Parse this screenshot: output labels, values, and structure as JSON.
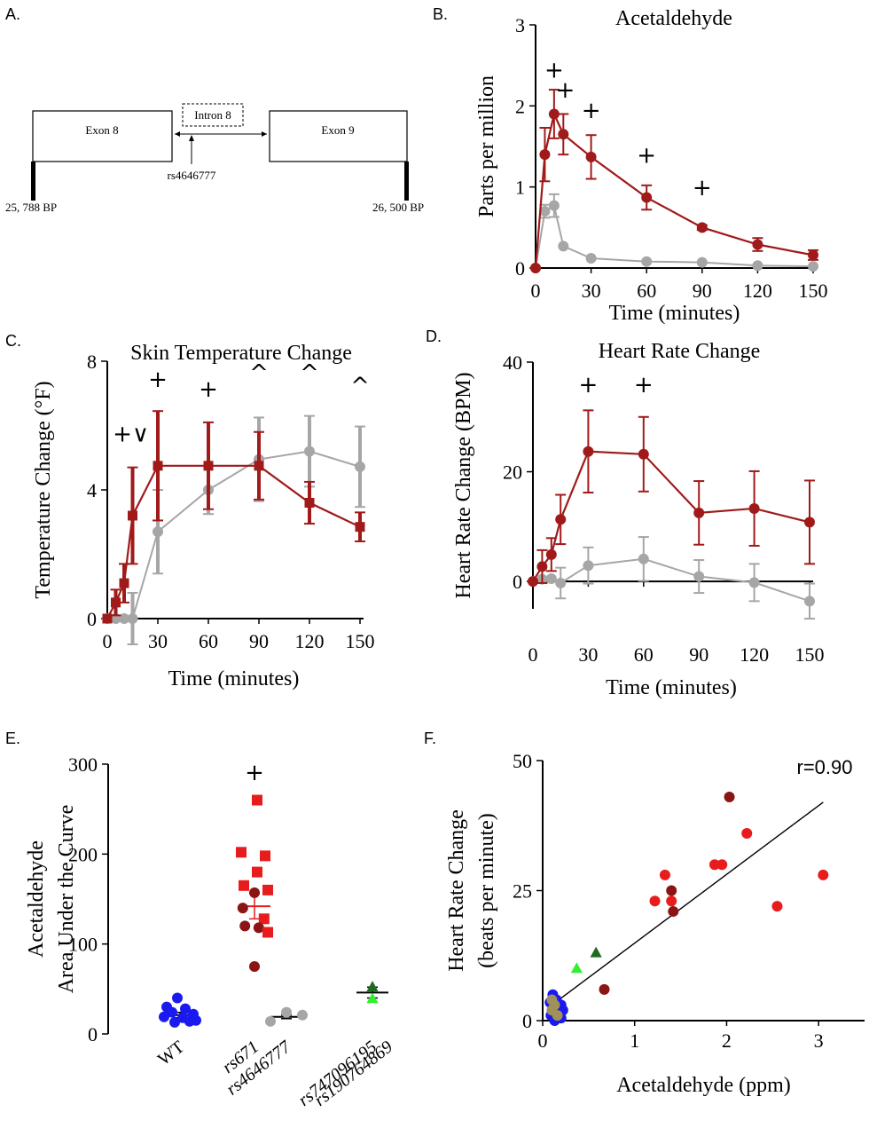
{
  "colors": {
    "dark_red": "#a01a1a",
    "gray": "#a6a6a6",
    "blue": "#1a1aee",
    "red": "#e81c1c",
    "maroon": "#8b1414",
    "light_green": "#33ee33",
    "dark_green": "#1f6b1f",
    "khaki": "#a0905a"
  },
  "panels": {
    "a": {
      "letter": "A."
    },
    "b": {
      "letter": "B."
    },
    "c": {
      "letter": "C."
    },
    "d": {
      "letter": "D."
    },
    "e": {
      "letter": "E."
    },
    "f": {
      "letter": "F."
    }
  },
  "gene_diagram": {
    "exon8": "Exon 8",
    "intron8": "Intron 8",
    "exon9": "Exon 9",
    "snp": "rs4646777",
    "left_bp": "25, 788 BP",
    "right_bp": "26, 500 BP"
  },
  "chart_data": [
    {
      "id": "B",
      "type": "line",
      "title": "Acetaldehyde",
      "xlabel": "Time (minutes)",
      "ylabel": "Parts per million",
      "xlim": [
        0,
        150
      ],
      "ylim": [
        0,
        3
      ],
      "xticks": [
        "0",
        "30",
        "60",
        "90",
        "120",
        "150"
      ],
      "yticks": [
        "0",
        "1",
        "2",
        "3"
      ],
      "grid": false,
      "series": [
        {
          "color": "dark_red",
          "marker": "circle",
          "x": [
            0,
            5,
            10,
            15,
            30,
            60,
            90,
            120,
            150
          ],
          "y": [
            0,
            1.4,
            1.9,
            1.65,
            1.37,
            0.87,
            0.5,
            0.29,
            0.16
          ],
          "err": [
            0,
            0.33,
            0.3,
            0.25,
            0.27,
            0.15,
            0.03,
            0.08,
            0.06
          ]
        },
        {
          "color": "gray",
          "marker": "circle",
          "x": [
            0,
            5,
            10,
            15,
            30,
            60,
            90,
            120,
            150
          ],
          "y": [
            0,
            0.7,
            0.77,
            0.27,
            0.12,
            0.08,
            0.07,
            0.03,
            0.02
          ],
          "err": [
            0,
            0.08,
            0.14,
            0,
            0,
            0,
            0,
            0,
            0
          ]
        }
      ],
      "annotations": [
        {
          "text": "+",
          "x": 10,
          "y": 2.35
        },
        {
          "text": "+",
          "x": 16,
          "y": 2.1
        },
        {
          "text": "+",
          "x": 30,
          "y": 1.85
        },
        {
          "text": "+",
          "x": 60,
          "y": 1.3
        },
        {
          "text": "+",
          "x": 90,
          "y": 0.9
        }
      ]
    },
    {
      "id": "C",
      "type": "line",
      "title": "Skin Temperature Change",
      "xlabel": "Time (minutes)",
      "ylabel": "Temperature Change (°F)",
      "xlim": [
        0,
        150
      ],
      "ylim": [
        0,
        8
      ],
      "xticks": [
        "0",
        "30",
        "60",
        "90",
        "120",
        "150"
      ],
      "yticks": [
        "0",
        "4",
        "8"
      ],
      "grid": false,
      "series": [
        {
          "color": "dark_red",
          "marker": "square",
          "x": [
            0,
            5,
            10,
            15,
            30,
            60,
            90,
            120,
            150
          ],
          "y": [
            0,
            0.5,
            1.1,
            3.2,
            4.75,
            4.75,
            4.75,
            3.6,
            2.85
          ],
          "err": [
            0,
            0.4,
            0.6,
            1.5,
            1.7,
            1.35,
            1.05,
            0.65,
            0.45
          ]
        },
        {
          "color": "gray",
          "marker": "circle",
          "x": [
            0,
            5,
            10,
            15,
            30,
            60,
            90,
            120,
            150
          ],
          "y": [
            0,
            0,
            0,
            0,
            2.7,
            4.0,
            4.95,
            5.2,
            4.72
          ],
          "err": [
            0,
            0,
            0,
            0.8,
            1.3,
            0.75,
            1.3,
            1.1,
            1.25
          ]
        }
      ],
      "annotations": [
        {
          "text": "+∨",
          "x": 14,
          "y": 5.5
        },
        {
          "text": "+",
          "x": 30,
          "y": 7.2
        },
        {
          "text": "+",
          "x": 60,
          "y": 6.9
        },
        {
          "text": "^",
          "x": 90,
          "y": 7.4
        },
        {
          "text": "^",
          "x": 120,
          "y": 7.4
        },
        {
          "text": "^",
          "x": 150,
          "y": 7.0
        }
      ]
    },
    {
      "id": "D",
      "type": "line",
      "title": "Heart Rate Change",
      "xlabel": "Time (minutes)",
      "ylabel": "Heart Rate Change (BPM)",
      "xlim": [
        0,
        150
      ],
      "ylim": [
        -5,
        40
      ],
      "xticks": [
        "0",
        "30",
        "60",
        "90",
        "120",
        "150"
      ],
      "yticks": [
        "0",
        "20",
        "40"
      ],
      "grid": false,
      "series": [
        {
          "color": "dark_red",
          "marker": "circle",
          "x": [
            0,
            5,
            10,
            15,
            30,
            60,
            90,
            120,
            150
          ],
          "y": [
            0,
            2.7,
            4.9,
            11.3,
            23.7,
            23.2,
            12.5,
            13.3,
            10.8
          ],
          "err": [
            0,
            3.0,
            3.0,
            4.5,
            7.5,
            6.8,
            5.8,
            6.8,
            7.6
          ]
        },
        {
          "color": "gray",
          "marker": "circle",
          "x": [
            0,
            5,
            10,
            15,
            30,
            60,
            90,
            120,
            150
          ],
          "y": [
            0,
            0.4,
            0.5,
            -0.3,
            2.9,
            4.1,
            0.9,
            -0.2,
            -3.6
          ],
          "err": [
            0,
            0,
            0,
            2.8,
            3.3,
            4.0,
            3.0,
            3.4,
            3.2
          ]
        }
      ],
      "annotations": [
        {
          "text": "+",
          "x": 30,
          "y": 34.5
        },
        {
          "text": "+",
          "x": 60,
          "y": 34.5
        }
      ]
    },
    {
      "id": "E",
      "type": "scatter",
      "title": "",
      "ylabel": "Acetaldehyde Area Under the Curve",
      "ylabel_lines": [
        "Acetaldehyde",
        "Area Under the Curve"
      ],
      "ylim": [
        0,
        300
      ],
      "yticks": [
        "0",
        "100",
        "200",
        "300"
      ],
      "categories": [
        "WT",
        "rs671",
        "rs4646777",
        "rs747096195 rs190764869"
      ],
      "category_lines": [
        [
          "WT"
        ],
        [
          "rs671"
        ],
        [
          "rs4646777"
        ],
        [
          "rs747096195",
          "rs190764869"
        ]
      ],
      "means": [
        21,
        142,
        19,
        46
      ],
      "sem": [
        3,
        14,
        2,
        6
      ],
      "points": [
        {
          "cat": 0,
          "y": 40,
          "dx": -0.05,
          "color": "blue",
          "marker": "circle"
        },
        {
          "cat": 0,
          "y": 30,
          "dx": -0.25,
          "color": "blue",
          "marker": "circle"
        },
        {
          "cat": 0,
          "y": 28,
          "dx": 0.1,
          "color": "blue",
          "marker": "circle"
        },
        {
          "cat": 0,
          "y": 24,
          "dx": -0.15,
          "color": "blue",
          "marker": "circle"
        },
        {
          "cat": 0,
          "y": 22,
          "dx": 0.25,
          "color": "blue",
          "marker": "circle"
        },
        {
          "cat": 0,
          "y": 19,
          "dx": -0.3,
          "color": "blue",
          "marker": "circle"
        },
        {
          "cat": 0,
          "y": 18,
          "dx": 0.05,
          "color": "blue",
          "marker": "circle"
        },
        {
          "cat": 0,
          "y": 15,
          "dx": 0.3,
          "color": "blue",
          "marker": "circle"
        },
        {
          "cat": 0,
          "y": 13,
          "dx": -0.1,
          "color": "blue",
          "marker": "circle"
        },
        {
          "cat": 0,
          "y": 14,
          "dx": 0.18,
          "color": "blue",
          "marker": "circle"
        },
        {
          "cat": 1,
          "y": 260,
          "dx": 0.05,
          "color": "red",
          "marker": "square"
        },
        {
          "cat": 1,
          "y": 202,
          "dx": -0.25,
          "color": "red",
          "marker": "square"
        },
        {
          "cat": 1,
          "y": 198,
          "dx": 0.2,
          "color": "red",
          "marker": "square"
        },
        {
          "cat": 1,
          "y": 180,
          "dx": 0.05,
          "color": "red",
          "marker": "square"
        },
        {
          "cat": 1,
          "y": 165,
          "dx": -0.2,
          "color": "red",
          "marker": "square"
        },
        {
          "cat": 1,
          "y": 160,
          "dx": 0.25,
          "color": "red",
          "marker": "square"
        },
        {
          "cat": 1,
          "y": 157,
          "dx": 0.0,
          "color": "maroon",
          "marker": "circle"
        },
        {
          "cat": 1,
          "y": 140,
          "dx": -0.22,
          "color": "maroon",
          "marker": "circle"
        },
        {
          "cat": 1,
          "y": 128,
          "dx": 0.18,
          "color": "red",
          "marker": "square"
        },
        {
          "cat": 1,
          "y": 120,
          "dx": -0.18,
          "color": "maroon",
          "marker": "circle"
        },
        {
          "cat": 1,
          "y": 118,
          "dx": 0.08,
          "color": "maroon",
          "marker": "circle"
        },
        {
          "cat": 1,
          "y": 113,
          "dx": 0.25,
          "color": "red",
          "marker": "square"
        },
        {
          "cat": 1,
          "y": 75,
          "dx": 0.0,
          "color": "maroon",
          "marker": "circle"
        },
        {
          "cat": 2,
          "y": 24,
          "dx": 0.0,
          "color": "gray",
          "marker": "circle"
        },
        {
          "cat": 2,
          "y": 21,
          "dx": 0.3,
          "color": "gray",
          "marker": "circle"
        },
        {
          "cat": 2,
          "y": 14,
          "dx": -0.3,
          "color": "gray",
          "marker": "circle"
        },
        {
          "cat": 3,
          "y": 52,
          "dx": 0.0,
          "color": "dark_green",
          "marker": "triangle"
        },
        {
          "cat": 3,
          "y": 39,
          "dx": 0.0,
          "color": "light_green",
          "marker": "triangle"
        }
      ],
      "annotations": [
        {
          "text": "+",
          "cat": 1,
          "y": 292
        }
      ]
    },
    {
      "id": "F",
      "type": "scatter",
      "title": "",
      "xlabel": "Acetaldehyde (ppm)",
      "ylabel": "Heart Rate Change (beats per minute)",
      "ylabel_lines": [
        "Heart Rate Change",
        "(beats per minute)"
      ],
      "xlim": [
        0,
        3.5
      ],
      "ylim": [
        0,
        50
      ],
      "xticks": [
        "0",
        "1",
        "2",
        "3"
      ],
      "yticks": [
        "0",
        "25",
        "50"
      ],
      "correlation": "r=0.90",
      "trendline": {
        "x1": 0.1,
        "y1": 3,
        "x2": 3.05,
        "y2": 42
      },
      "points": [
        {
          "x": 2.03,
          "y": 43,
          "color": "maroon",
          "marker": "circle"
        },
        {
          "x": 2.22,
          "y": 36,
          "color": "red",
          "marker": "circle"
        },
        {
          "x": 1.87,
          "y": 30,
          "color": "red",
          "marker": "circle"
        },
        {
          "x": 1.95,
          "y": 30,
          "color": "red",
          "marker": "circle"
        },
        {
          "x": 3.05,
          "y": 28,
          "color": "red",
          "marker": "circle"
        },
        {
          "x": 1.33,
          "y": 28,
          "color": "red",
          "marker": "circle"
        },
        {
          "x": 1.4,
          "y": 25,
          "color": "maroon",
          "marker": "circle"
        },
        {
          "x": 1.22,
          "y": 23,
          "color": "red",
          "marker": "circle"
        },
        {
          "x": 1.4,
          "y": 23,
          "color": "red",
          "marker": "circle"
        },
        {
          "x": 2.55,
          "y": 22,
          "color": "red",
          "marker": "circle"
        },
        {
          "x": 1.42,
          "y": 21,
          "color": "maroon",
          "marker": "circle"
        },
        {
          "x": 0.58,
          "y": 13,
          "color": "dark_green",
          "marker": "triangle"
        },
        {
          "x": 0.37,
          "y": 10,
          "color": "light_green",
          "marker": "triangle"
        },
        {
          "x": 0.67,
          "y": 6,
          "color": "maroon",
          "marker": "circle"
        },
        {
          "x": 0.11,
          "y": 5,
          "color": "blue",
          "marker": "circle"
        },
        {
          "x": 0.15,
          "y": 4,
          "color": "blue",
          "marker": "circle"
        },
        {
          "x": 0.08,
          "y": 3.5,
          "color": "blue",
          "marker": "circle"
        },
        {
          "x": 0.2,
          "y": 3,
          "color": "blue",
          "marker": "circle"
        },
        {
          "x": 0.12,
          "y": 2.5,
          "color": "blue",
          "marker": "circle"
        },
        {
          "x": 0.22,
          "y": 2,
          "color": "blue",
          "marker": "circle"
        },
        {
          "x": 0.16,
          "y": 1.5,
          "color": "blue",
          "marker": "circle"
        },
        {
          "x": 0.09,
          "y": 1,
          "color": "blue",
          "marker": "circle"
        },
        {
          "x": 0.2,
          "y": 0.5,
          "color": "blue",
          "marker": "circle"
        },
        {
          "x": 0.13,
          "y": 0,
          "color": "blue",
          "marker": "circle"
        },
        {
          "x": 0.1,
          "y": 4,
          "color": "khaki",
          "marker": "circle"
        },
        {
          "x": 0.13,
          "y": 3,
          "color": "khaki",
          "marker": "circle"
        },
        {
          "x": 0.1,
          "y": 2,
          "color": "khaki",
          "marker": "circle"
        },
        {
          "x": 0.16,
          "y": 1,
          "color": "khaki",
          "marker": "circle"
        }
      ]
    }
  ]
}
